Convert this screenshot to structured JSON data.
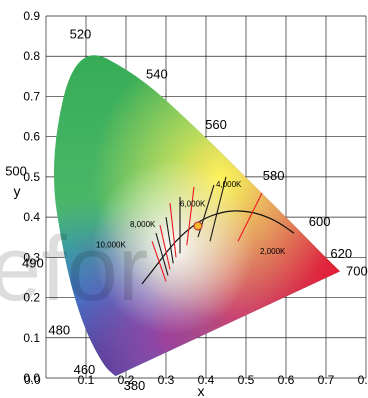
{
  "chart_data": {
    "type": "scatter",
    "title": "",
    "xlabel": "x",
    "ylabel": "y",
    "xlim": [
      0.0,
      0.8
    ],
    "ylim": [
      0.0,
      0.9
    ],
    "x_ticks": [
      "0.0",
      "0.1",
      "0.2",
      "0.3",
      "0.4",
      "0.5",
      "0.6",
      "0.7",
      "0.8"
    ],
    "y_ticks": [
      "0.0",
      "0.1",
      "0.2",
      "0.3",
      "0.4",
      "0.5",
      "0.6",
      "0.7",
      "0.8",
      "0.9"
    ],
    "grid": true,
    "spectral_locus": [
      {
        "label": "380",
        "x": 0.174,
        "y": 0.005
      },
      {
        "label": "460",
        "x": 0.144,
        "y": 0.03
      },
      {
        "label": "480",
        "x": 0.091,
        "y": 0.133
      },
      {
        "label": "490",
        "x": 0.045,
        "y": 0.295
      },
      {
        "label": "500",
        "x": 0.008,
        "y": 0.538
      },
      {
        "label": "520",
        "x": 0.074,
        "y": 0.834
      },
      {
        "label": "540",
        "x": 0.23,
        "y": 0.754
      },
      {
        "label": "560",
        "x": 0.373,
        "y": 0.624
      },
      {
        "label": "580",
        "x": 0.512,
        "y": 0.487
      },
      {
        "label": "600",
        "x": 0.627,
        "y": 0.373
      },
      {
        "label": "620",
        "x": 0.691,
        "y": 0.308
      },
      {
        "label": "700",
        "x": 0.735,
        "y": 0.265
      }
    ],
    "planckian_locus": [
      {
        "x": 0.24,
        "y": 0.234
      },
      {
        "x": 0.27,
        "y": 0.272
      },
      {
        "x": 0.295,
        "y": 0.305
      },
      {
        "x": 0.323,
        "y": 0.339
      },
      {
        "x": 0.356,
        "y": 0.37
      },
      {
        "x": 0.4,
        "y": 0.4
      },
      {
        "x": 0.454,
        "y": 0.416
      },
      {
        "x": 0.5,
        "y": 0.415
      },
      {
        "x": 0.54,
        "y": 0.406
      },
      {
        "x": 0.58,
        "y": 0.388
      },
      {
        "x": 0.62,
        "y": 0.36
      }
    ],
    "isotherms": [
      {
        "x1": 0.265,
        "y1": 0.34,
        "x2": 0.3,
        "y2": 0.24,
        "color": "#e8171f"
      },
      {
        "x1": 0.275,
        "y1": 0.36,
        "x2": 0.305,
        "y2": 0.255,
        "color": "#1a1a1a"
      },
      {
        "x1": 0.285,
        "y1": 0.38,
        "x2": 0.31,
        "y2": 0.27,
        "color": "#e8171f"
      },
      {
        "x1": 0.3,
        "y1": 0.4,
        "x2": 0.318,
        "y2": 0.285,
        "color": "#1a1a1a"
      },
      {
        "x1": 0.31,
        "y1": 0.435,
        "x2": 0.325,
        "y2": 0.3,
        "color": "#e8171f"
      },
      {
        "x1": 0.335,
        "y1": 0.45,
        "x2": 0.335,
        "y2": 0.31,
        "color": "#1a1a1a"
      },
      {
        "x1": 0.37,
        "y1": 0.475,
        "x2": 0.352,
        "y2": 0.33,
        "color": "#e8171f"
      },
      {
        "x1": 0.42,
        "y1": 0.48,
        "x2": 0.38,
        "y2": 0.35,
        "color": "#1a1a1a"
      },
      {
        "x1": 0.45,
        "y1": 0.5,
        "x2": 0.41,
        "y2": 0.34,
        "color": "#1a1a1a"
      },
      {
        "x1": 0.54,
        "y1": 0.46,
        "x2": 0.48,
        "y2": 0.34,
        "color": "#e8171f"
      }
    ],
    "cct_labels": [
      {
        "text": "10,000K",
        "x": 0.125,
        "y": 0.325
      },
      {
        "text": "8,000K",
        "x": 0.21,
        "y": 0.375
      },
      {
        "text": "6,000K",
        "x": 0.335,
        "y": 0.427
      },
      {
        "text": "4,000K",
        "x": 0.425,
        "y": 0.475
      },
      {
        "text": "2,000K",
        "x": 0.535,
        "y": 0.308
      }
    ],
    "white_point": {
      "x": 0.38,
      "y": 0.378,
      "color": "#f7b82b"
    },
    "watermark": "efor"
  }
}
